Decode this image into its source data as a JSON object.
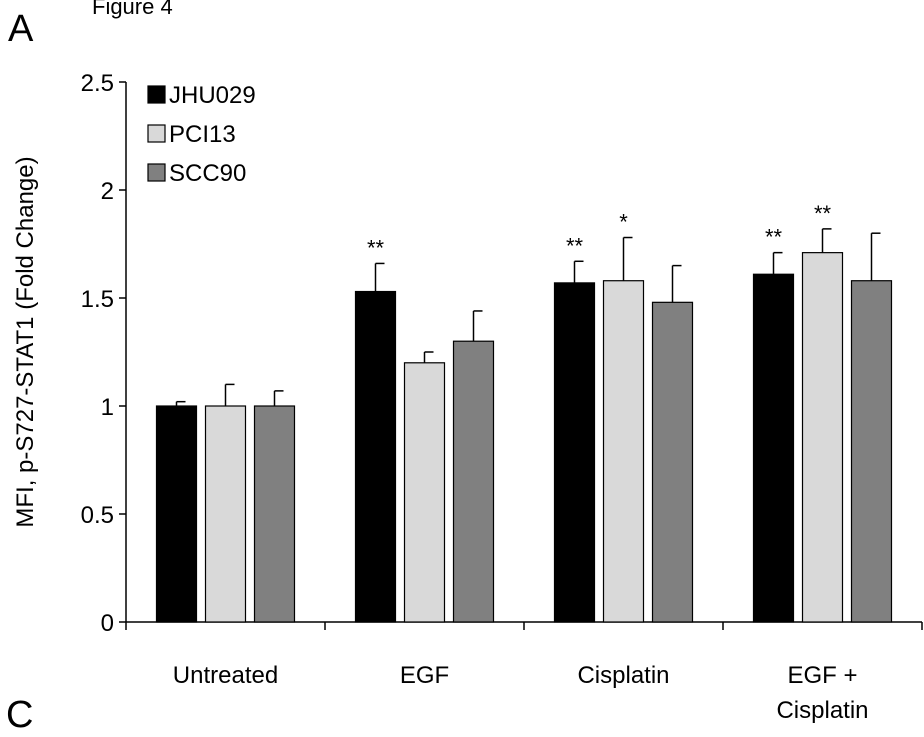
{
  "figure_caption": "Figure 4",
  "panel_label": "A",
  "next_panel_label": "C",
  "chart_data": {
    "type": "bar",
    "title": "",
    "xlabel": "",
    "ylabel": "MFI, p-S727-STAT1 (Fold Change)",
    "ylim": [
      0,
      2.5
    ],
    "yticks": [
      "0",
      "0.5",
      "1",
      "1.5",
      "2",
      "2.5"
    ],
    "categories": [
      [
        "Untreated"
      ],
      [
        "EGF"
      ],
      [
        "Cisplatin"
      ],
      [
        "EGF +",
        "Cisplatin"
      ]
    ],
    "series": [
      {
        "name": "JHU029",
        "color": "#000000",
        "values": [
          1.0,
          1.53,
          1.57,
          1.61
        ],
        "errors": [
          0.02,
          0.13,
          0.1,
          0.1
        ],
        "significance": [
          "",
          "**",
          "**",
          "**"
        ]
      },
      {
        "name": "PCI13",
        "color": "#d9d9d9",
        "values": [
          1.0,
          1.2,
          1.58,
          1.71
        ],
        "errors": [
          0.1,
          0.05,
          0.2,
          0.11
        ],
        "significance": [
          "",
          "",
          "*",
          "**"
        ]
      },
      {
        "name": "SCC90",
        "color": "#808080",
        "values": [
          1.0,
          1.3,
          1.48,
          1.58
        ],
        "errors": [
          0.07,
          0.14,
          0.17,
          0.22
        ],
        "significance": [
          "",
          "",
          "",
          ""
        ]
      }
    ],
    "legend_position": "top-left",
    "grid": false
  }
}
